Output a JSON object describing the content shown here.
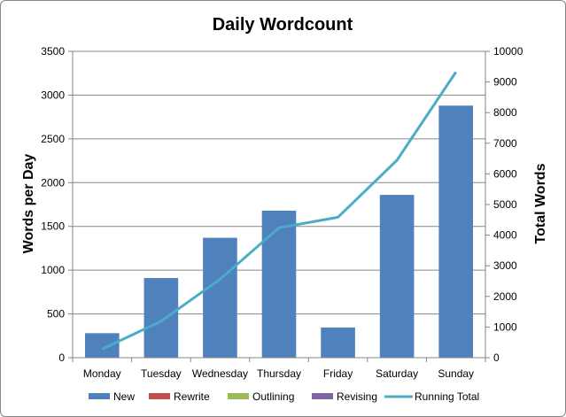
{
  "chart_data": {
    "type": "bar",
    "title": "Daily Wordcount",
    "xlabel": "",
    "ylabel": "Words per Day",
    "y2label": "Total Words",
    "categories": [
      "Monday",
      "Tuesday",
      "Wednesday",
      "Thursday",
      "Friday",
      "Saturday",
      "Sunday"
    ],
    "ylim": [
      0,
      3500
    ],
    "yticks": [
      0,
      500,
      1000,
      1500,
      2000,
      2500,
      3000,
      3500
    ],
    "y2lim": [
      0,
      10000
    ],
    "y2ticks": [
      0,
      1000,
      2000,
      3000,
      4000,
      5000,
      6000,
      7000,
      8000,
      9000,
      10000
    ],
    "grid": true,
    "legend_position": "bottom",
    "series": [
      {
        "name": "New",
        "type": "bar",
        "axis": "left",
        "color": "#4F81BD",
        "values": [
          280,
          910,
          1370,
          1680,
          345,
          1860,
          2880
        ]
      },
      {
        "name": "Rewrite",
        "type": "bar",
        "axis": "left",
        "color": "#C0504D",
        "values": [
          0,
          0,
          0,
          0,
          0,
          0,
          0
        ]
      },
      {
        "name": "Outlining",
        "type": "bar",
        "axis": "left",
        "color": "#9BBB59",
        "values": [
          0,
          0,
          0,
          0,
          0,
          0,
          0
        ]
      },
      {
        "name": "Revising",
        "type": "bar",
        "axis": "left",
        "color": "#8064A2",
        "values": [
          0,
          0,
          0,
          0,
          0,
          0,
          0
        ]
      },
      {
        "name": "Running Total",
        "type": "line",
        "axis": "right",
        "color": "#4BACC6",
        "values": [
          280,
          1190,
          2560,
          4240,
          4585,
          6445,
          9325
        ]
      }
    ]
  }
}
